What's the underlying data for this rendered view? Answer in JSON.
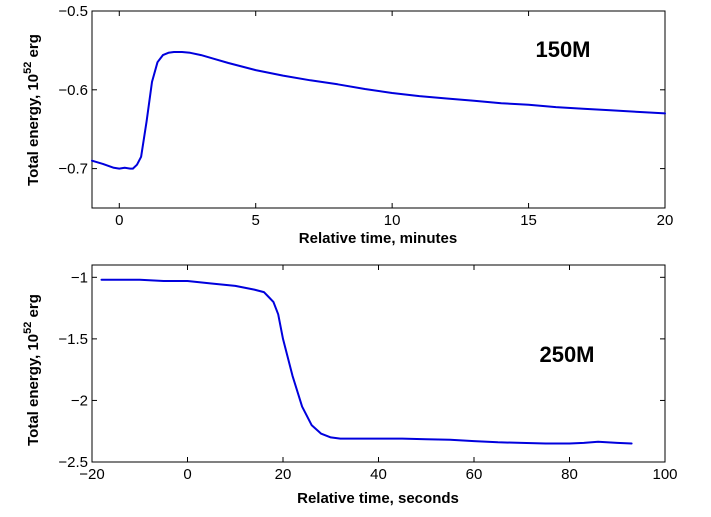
{
  "chart_data": [
    {
      "type": "line",
      "title": "",
      "xlabel": "Relative time, minutes",
      "ylabel": "Total energy, 10",
      "ylabel_exp": "52",
      "ylabel_unit": " erg",
      "annotation": "150M",
      "xlim": [
        -1,
        20
      ],
      "ylim": [
        -0.75,
        -0.5
      ],
      "xticks": [
        0,
        5,
        10,
        15,
        20
      ],
      "xtick_labels": [
        "0",
        "5",
        "10",
        "15",
        "20"
      ],
      "yticks": [
        -0.7,
        -0.6,
        -0.5
      ],
      "ytick_labels": [
        "−0.7",
        "−0.6",
        "−0.5"
      ],
      "grid": false,
      "legend": "none",
      "series": [
        {
          "color": "#0000dd",
          "x": [
            -1,
            -0.6,
            -0.2,
            0,
            0.2,
            0.4,
            0.5,
            0.65,
            0.8,
            1.0,
            1.2,
            1.4,
            1.6,
            1.8,
            2.0,
            2.3,
            2.6,
            3,
            3.5,
            4,
            5,
            6,
            7,
            8,
            9,
            10,
            11,
            12,
            13,
            14,
            15,
            16,
            17,
            18,
            19,
            20
          ],
          "y": [
            -0.69,
            -0.694,
            -0.699,
            -0.7,
            -0.699,
            -0.7,
            -0.7,
            -0.695,
            -0.685,
            -0.64,
            -0.59,
            -0.565,
            -0.556,
            -0.553,
            -0.552,
            -0.552,
            -0.553,
            -0.556,
            -0.561,
            -0.566,
            -0.575,
            -0.582,
            -0.588,
            -0.593,
            -0.599,
            -0.604,
            -0.608,
            -0.611,
            -0.614,
            -0.617,
            -0.619,
            -0.622,
            -0.624,
            -0.626,
            -0.628,
            -0.63
          ]
        }
      ]
    },
    {
      "type": "line",
      "title": "",
      "xlabel": "Relative time, seconds",
      "ylabel": "Total energy, 10",
      "ylabel_exp": "52",
      "ylabel_unit": " erg",
      "annotation": "250M",
      "xlim": [
        -20,
        100
      ],
      "ylim": [
        -2.5,
        -0.9
      ],
      "xticks": [
        -20,
        0,
        20,
        40,
        60,
        80,
        100
      ],
      "xtick_labels": [
        "−20",
        "0",
        "20",
        "40",
        "60",
        "80",
        "100"
      ],
      "yticks": [
        -2.5,
        -2,
        -1.5,
        -1
      ],
      "ytick_labels": [
        "−2.5",
        "−2",
        "−1.5",
        "−1"
      ],
      "grid": false,
      "legend": "none",
      "series": [
        {
          "color": "#0000dd",
          "x": [
            -18,
            -10,
            -5,
            0,
            5,
            10,
            14,
            16,
            17,
            18,
            19,
            20,
            22,
            24,
            26,
            28,
            30,
            32,
            35,
            40,
            45,
            50,
            55,
            60,
            65,
            70,
            75,
            80,
            83,
            86,
            90,
            93
          ],
          "y": [
            -1.02,
            -1.02,
            -1.03,
            -1.03,
            -1.05,
            -1.07,
            -1.1,
            -1.12,
            -1.16,
            -1.2,
            -1.3,
            -1.5,
            -1.8,
            -2.05,
            -2.2,
            -2.27,
            -2.3,
            -2.31,
            -2.31,
            -2.31,
            -2.31,
            -2.315,
            -2.32,
            -2.33,
            -2.34,
            -2.345,
            -2.35,
            -2.35,
            -2.345,
            -2.335,
            -2.345,
            -2.35
          ]
        }
      ]
    }
  ]
}
